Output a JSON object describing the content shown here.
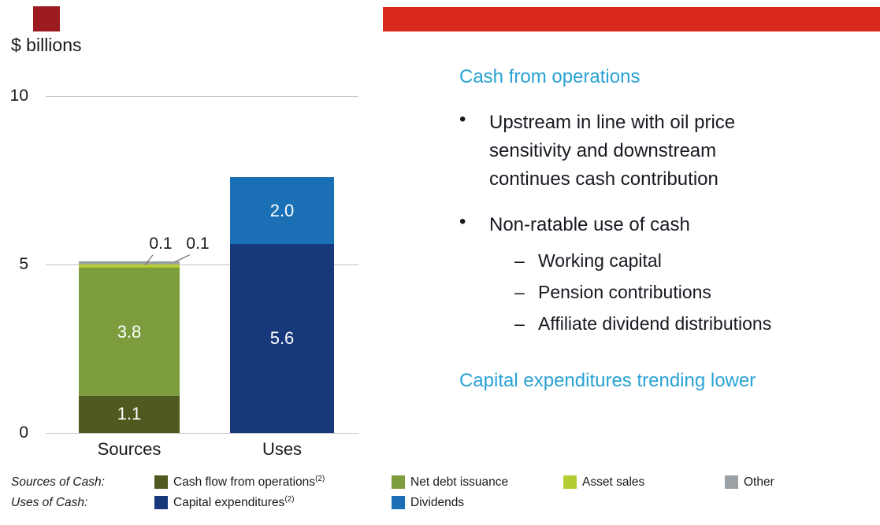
{
  "decor": {
    "square_color": "#9b1b1e",
    "banner_color": "#da291c"
  },
  "colors": {
    "heading_accent": "#29a2d4",
    "text_dark": "#191922",
    "gridline": "#c4c4c4"
  },
  "chart_data": {
    "type": "bar",
    "stacked": true,
    "title": "$ billions",
    "ylim": [
      0,
      10
    ],
    "yticks": [
      "0",
      "5",
      "10"
    ],
    "grid": true,
    "categories": [
      "Sources",
      "Uses"
    ],
    "bars": [
      {
        "category": "Sources",
        "total": 5.1,
        "segments": [
          {
            "name": "Cash flow from operations",
            "value": 1.1,
            "label": "1.1",
            "color": "#4e5a1f",
            "label_style": "inside"
          },
          {
            "name": "Net debt issuance",
            "value": 3.8,
            "label": "3.8",
            "color": "#7d9c3e",
            "label_style": "inside"
          },
          {
            "name": "Asset sales",
            "value": 0.1,
            "label": "0.1",
            "color": "#b5cc33",
            "label_style": "callout"
          },
          {
            "name": "Other",
            "value": 0.1,
            "label": "0.1",
            "color": "#9aa0a4",
            "label_style": "callout"
          }
        ]
      },
      {
        "category": "Uses",
        "total": 7.6,
        "segments": [
          {
            "name": "Capital expenditures",
            "value": 5.6,
            "label": "5.6",
            "color": "#17387b",
            "label_style": "inside"
          },
          {
            "name": "Dividends",
            "value": 2.0,
            "label": "2.0",
            "color": "#1a6fb5",
            "label_style": "inside"
          }
        ]
      }
    ]
  },
  "panel": {
    "heading1": "Cash from operations",
    "bullet_char": "•",
    "dash_char": "–",
    "bullet1": "Upstream in line with oil price sensitivity and downstream continues cash contribution",
    "bullet2": "Non-ratable use of cash",
    "sub_items": [
      "Working capital",
      "Pension contributions",
      "Affiliate dividend distributions"
    ],
    "heading2": "Capital expenditures trending lower"
  },
  "legend": {
    "rows": [
      {
        "title": "Sources of Cash:",
        "items": [
          {
            "label": "Cash flow from operations",
            "sup": "(2)",
            "color": "#4e5a1f"
          },
          {
            "label": "Net debt issuance",
            "sup": "",
            "color": "#7d9c3e"
          },
          {
            "label": "Asset sales",
            "sup": "",
            "color": "#b5cc33"
          },
          {
            "label": "Other",
            "sup": "",
            "color": "#9aa0a4"
          }
        ]
      },
      {
        "title": "Uses of Cash:",
        "items": [
          {
            "label": "Capital expenditures",
            "sup": "(2)",
            "color": "#17387b"
          },
          {
            "label": "Dividends",
            "sup": "",
            "color": "#1a6fb5"
          }
        ]
      }
    ]
  }
}
